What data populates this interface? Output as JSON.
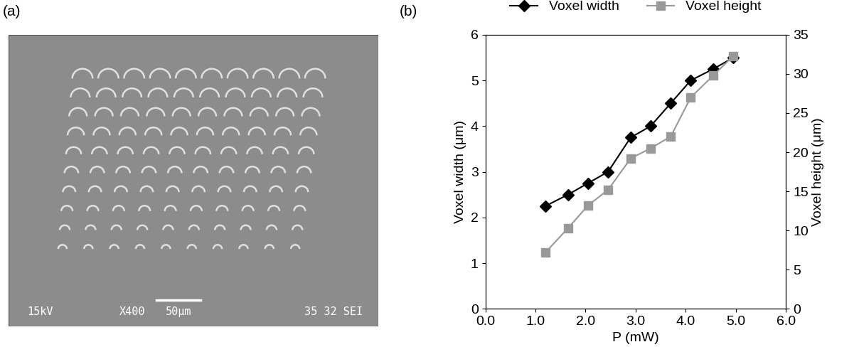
{
  "chart_data": [
    {
      "type": "image",
      "title": "(a)",
      "annotations": [
        "15kV",
        "X400",
        "50μm",
        "35 32 SEI"
      ]
    },
    {
      "type": "line",
      "title": "(b)",
      "x_label": "P (mW)",
      "y_label": "Voxel width (μm)",
      "y2_label": "Voxel height (μm)",
      "x": [
        1.2,
        1.65,
        2.05,
        2.45,
        2.9,
        3.3,
        3.7,
        4.1,
        4.55,
        4.95
      ],
      "series": [
        {
          "name": "Voxel width",
          "color": "#000000",
          "marker": "diamond",
          "values": [
            2.25,
            2.5,
            2.75,
            3.0,
            3.75,
            4.0,
            4.5,
            5.0,
            5.25,
            5.5
          ]
        },
        {
          "name": "Voxel height",
          "color": "#999999",
          "marker": "square",
          "axis": "y2",
          "values": [
            7.2,
            10.3,
            13.2,
            15.2,
            19.2,
            20.5,
            22.0,
            27.0,
            29.8,
            32.3
          ]
        }
      ],
      "xlim": [
        0,
        6
      ],
      "xticks": [
        {
          "value": 0,
          "label": "0.0"
        },
        {
          "value": 1,
          "label": "1.0"
        },
        {
          "value": 2,
          "label": "2.0"
        },
        {
          "value": 3,
          "label": "3.0"
        },
        {
          "value": 4,
          "label": "4.0"
        },
        {
          "value": 5,
          "label": "5.0"
        },
        {
          "value": 6,
          "label": "6.0"
        }
      ],
      "ylim": [
        0,
        6
      ],
      "yticks": [
        0,
        1,
        2,
        3,
        4,
        5,
        6
      ],
      "y2lim": [
        0,
        35
      ],
      "y2ticks": [
        0,
        5,
        10,
        15,
        20,
        25,
        30,
        35
      ],
      "legend": "upper center",
      "grid": false
    }
  ]
}
